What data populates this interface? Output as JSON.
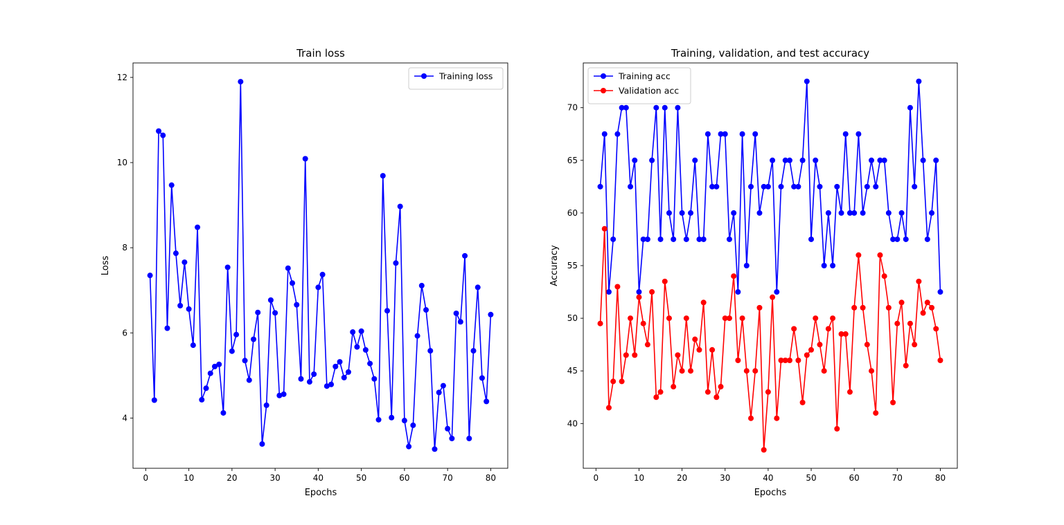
{
  "chart_data": [
    {
      "type": "line",
      "title": "Train loss",
      "xlabel": "Epochs",
      "ylabel": "Loss",
      "xlim": [
        -2.95,
        83.95
      ],
      "ylim": [
        2.82,
        12.34
      ],
      "xticks": [
        0,
        10,
        20,
        30,
        40,
        50,
        60,
        70,
        80
      ],
      "yticks": [
        4,
        6,
        8,
        10,
        12
      ],
      "grid": false,
      "legend_position": "top-right",
      "x": [
        1,
        2,
        3,
        4,
        5,
        6,
        7,
        8,
        9,
        10,
        11,
        12,
        13,
        14,
        15,
        16,
        17,
        18,
        19,
        20,
        21,
        22,
        23,
        24,
        25,
        26,
        27,
        28,
        29,
        30,
        31,
        32,
        33,
        34,
        35,
        36,
        37,
        38,
        39,
        40,
        41,
        42,
        43,
        44,
        45,
        46,
        47,
        48,
        49,
        50,
        51,
        52,
        53,
        54,
        55,
        56,
        57,
        58,
        59,
        60,
        61,
        62,
        63,
        64,
        65,
        66,
        67,
        68,
        69,
        70,
        71,
        72,
        73,
        74,
        75,
        76,
        77,
        78,
        79,
        80
      ],
      "series": [
        {
          "name": "Training loss",
          "color": "#0000ff",
          "values": [
            7.35,
            4.42,
            10.74,
            10.64,
            6.11,
            9.47,
            7.87,
            6.64,
            7.66,
            6.56,
            5.71,
            8.48,
            4.43,
            4.7,
            5.05,
            5.21,
            5.26,
            4.12,
            7.54,
            5.57,
            5.96,
            11.9,
            5.35,
            4.89,
            5.85,
            6.48,
            3.39,
            4.3,
            6.77,
            6.47,
            4.53,
            4.56,
            7.52,
            7.17,
            6.66,
            4.92,
            10.09,
            4.85,
            5.03,
            7.07,
            7.37,
            4.75,
            4.79,
            5.21,
            5.32,
            4.95,
            5.08,
            6.02,
            5.67,
            6.04,
            5.6,
            5.28,
            4.92,
            3.96,
            9.69,
            6.52,
            4.01,
            7.64,
            8.97,
            3.94,
            3.33,
            3.83,
            5.93,
            7.11,
            6.54,
            5.58,
            3.27,
            4.6,
            4.76,
            3.75,
            3.52,
            6.46,
            6.26,
            7.81,
            3.52,
            5.58,
            7.07,
            4.94,
            4.39,
            6.43
          ]
        }
      ]
    },
    {
      "type": "line",
      "title": "Training, validation, and test accuracy",
      "xlabel": "Epochs",
      "ylabel": "Accuracy",
      "xlim": [
        -2.95,
        83.95
      ],
      "ylim": [
        35.75,
        74.25
      ],
      "xticks": [
        0,
        10,
        20,
        30,
        40,
        50,
        60,
        70,
        80
      ],
      "yticks": [
        40,
        45,
        50,
        55,
        60,
        65,
        70
      ],
      "grid": false,
      "legend_position": "top-left",
      "x": [
        1,
        2,
        3,
        4,
        5,
        6,
        7,
        8,
        9,
        10,
        11,
        12,
        13,
        14,
        15,
        16,
        17,
        18,
        19,
        20,
        21,
        22,
        23,
        24,
        25,
        26,
        27,
        28,
        29,
        30,
        31,
        32,
        33,
        34,
        35,
        36,
        37,
        38,
        39,
        40,
        41,
        42,
        43,
        44,
        45,
        46,
        47,
        48,
        49,
        50,
        51,
        52,
        53,
        54,
        55,
        56,
        57,
        58,
        59,
        60,
        61,
        62,
        63,
        64,
        65,
        66,
        67,
        68,
        69,
        70,
        71,
        72,
        73,
        74,
        75,
        76,
        77,
        78,
        79,
        80
      ],
      "series": [
        {
          "name": "Training acc",
          "color": "#0000ff",
          "values": [
            62.5,
            67.5,
            52.5,
            57.5,
            67.5,
            70,
            70,
            62.5,
            65,
            52.5,
            57.5,
            57.5,
            65,
            70,
            57.5,
            70,
            60,
            57.5,
            70,
            60,
            57.5,
            60,
            65,
            57.5,
            57.5,
            67.5,
            62.5,
            62.5,
            67.5,
            67.5,
            57.5,
            60,
            52.5,
            67.5,
            55,
            62.5,
            67.5,
            60,
            62.5,
            62.5,
            65,
            52.5,
            62.5,
            65,
            65,
            62.5,
            62.5,
            65,
            72.5,
            57.5,
            65,
            62.5,
            55,
            60,
            55,
            62.5,
            60,
            67.5,
            60,
            60,
            67.5,
            60,
            62.5,
            65,
            62.5,
            65,
            65,
            60,
            57.5,
            57.5,
            60,
            57.5,
            70,
            62.5,
            72.5,
            65,
            57.5,
            60,
            65,
            52.5
          ]
        },
        {
          "name": "Validation acc",
          "color": "#ff0000",
          "values": [
            49.5,
            58.5,
            41.5,
            44,
            53,
            44,
            46.5,
            50,
            46.5,
            52,
            49.5,
            47.5,
            52.5,
            42.5,
            43,
            53.5,
            50,
            43.5,
            46.5,
            45,
            50,
            45,
            48,
            47,
            51.5,
            43,
            47,
            42.5,
            43.5,
            50,
            50,
            54,
            46,
            50,
            45,
            40.5,
            45,
            51,
            37.5,
            43,
            52,
            40.5,
            46,
            46,
            46,
            49,
            46,
            42,
            46.5,
            47,
            50,
            47.5,
            45,
            49,
            50,
            39.5,
            48.5,
            48.5,
            43,
            51,
            56,
            51,
            47.5,
            45,
            41,
            56,
            54,
            51,
            42,
            49.5,
            51.5,
            45.5,
            49.5,
            47.5,
            53.5,
            50.5,
            51.5,
            51,
            49,
            46
          ]
        }
      ]
    }
  ]
}
